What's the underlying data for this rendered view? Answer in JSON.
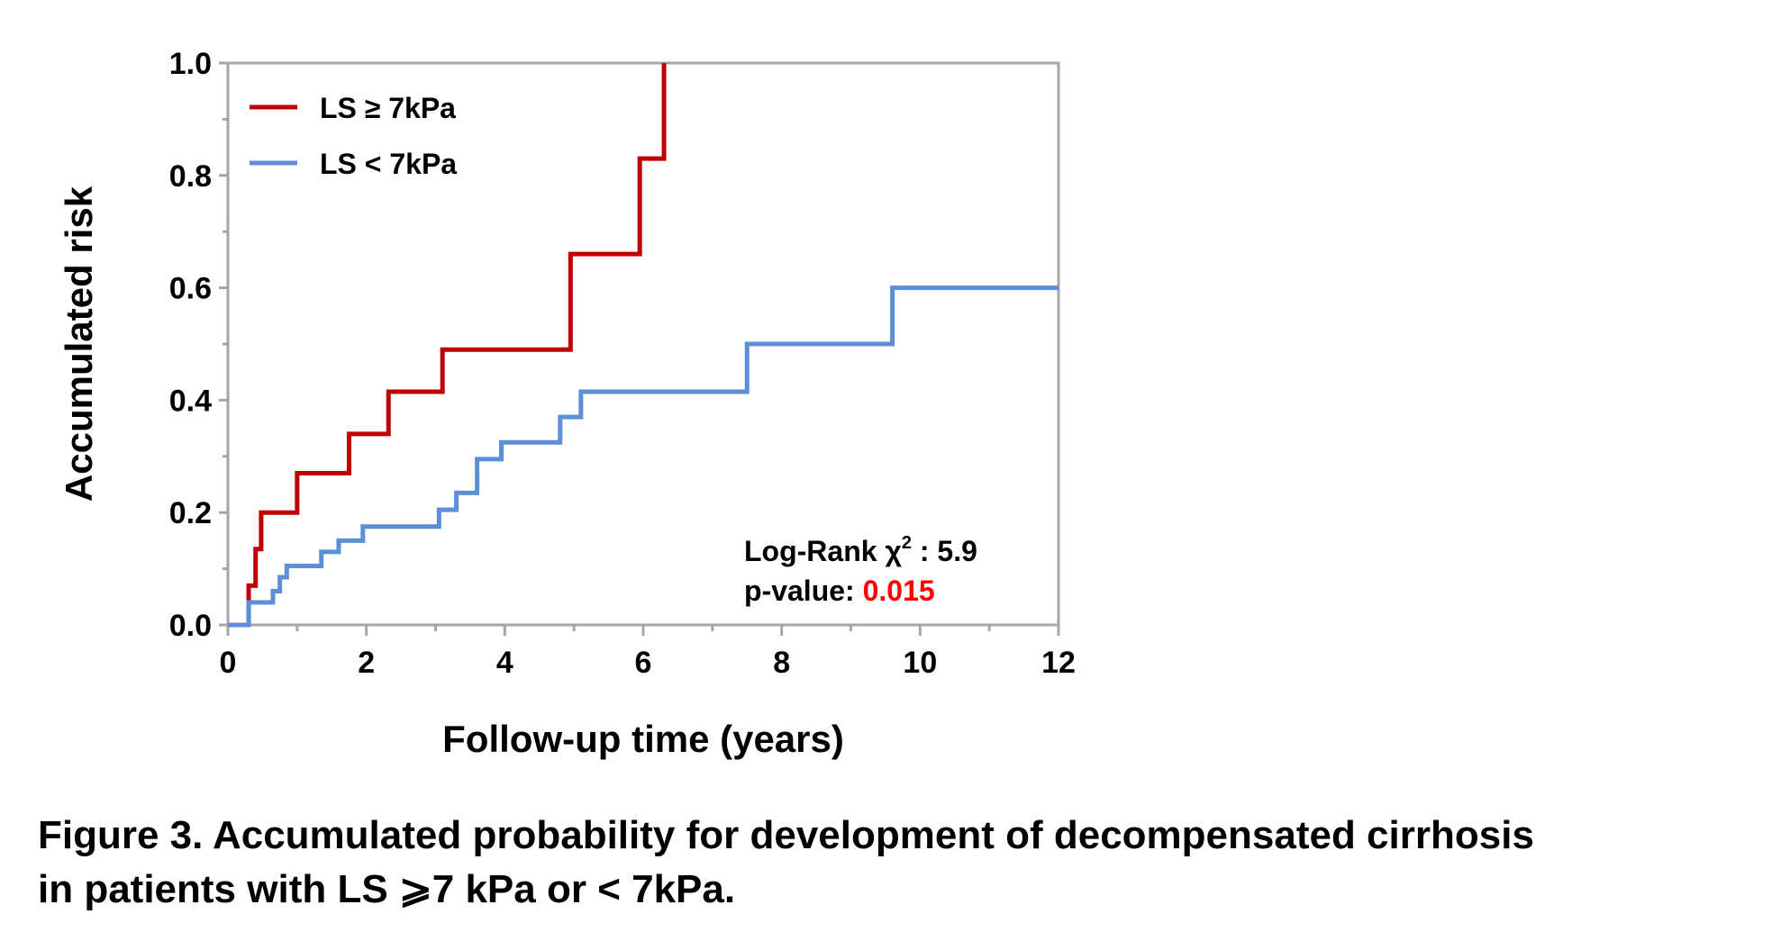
{
  "chart_data": {
    "type": "line",
    "step": true,
    "xlabel": "Follow-up time (years)",
    "ylabel": "Accumulated risk",
    "xlim": [
      0,
      12
    ],
    "ylim": [
      0,
      1
    ],
    "xticks": [
      "0",
      "2",
      "4",
      "6",
      "8",
      "10",
      "12"
    ],
    "yticks": [
      "0.0",
      "0.2",
      "0.4",
      "0.6",
      "0.8",
      "1.0"
    ],
    "grid": false,
    "legend_position": "top-left",
    "series": [
      {
        "name": "LS ≥ 7kPa",
        "color": "#c00000",
        "x": [
          0,
          0.3,
          0.4,
          0.48,
          0.6,
          1.0,
          1.75,
          2.32,
          3.1,
          4.95,
          5.95,
          6.3
        ],
        "y": [
          0.0,
          0.07,
          0.135,
          0.2,
          0.2,
          0.27,
          0.34,
          0.415,
          0.49,
          0.66,
          0.83,
          1.0
        ]
      },
      {
        "name": "LS < 7kPa",
        "color": "#5b8fd6",
        "x": [
          0,
          0.3,
          0.65,
          0.75,
          0.85,
          1.35,
          1.6,
          1.95,
          3.05,
          3.3,
          3.6,
          3.95,
          4.8,
          5.1,
          7.5,
          9.6,
          12
        ],
        "y": [
          0.0,
          0.04,
          0.06,
          0.085,
          0.105,
          0.13,
          0.15,
          0.175,
          0.205,
          0.235,
          0.295,
          0.325,
          0.37,
          0.415,
          0.5,
          0.6,
          0.6
        ]
      }
    ],
    "annotations": {
      "logrank_label": "Log-Rank χ",
      "logrank_superscript": "2",
      "logrank_value": " : 5.9",
      "pvalue_label": "p-value: ",
      "pvalue_value": "0.015",
      "pvalue_color": "#ff0000"
    }
  },
  "caption": {
    "line1": "Figure 3. Accumulated probability for development of decompensated cirrhosis",
    "line2": "in patients with LS ⩾7 kPa or < 7kPa."
  }
}
